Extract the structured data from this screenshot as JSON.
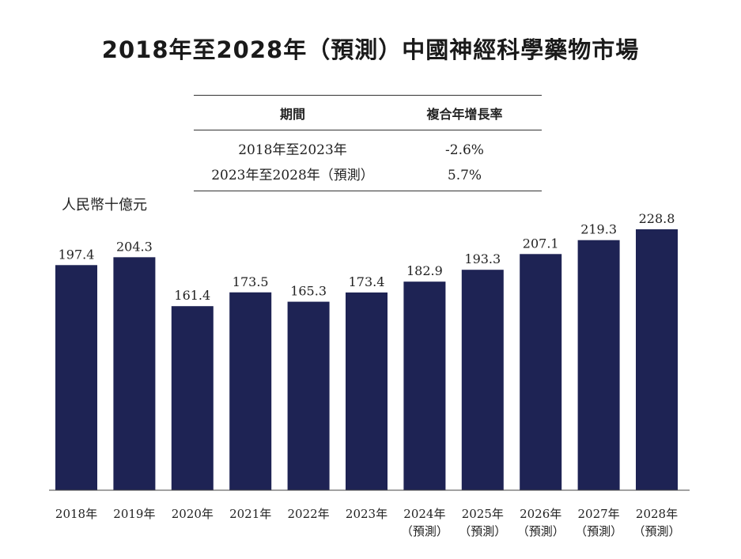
{
  "title": "2018年至2028年（預測）中國神經科學藥物市場",
  "cagr_table": {
    "headers": [
      "期間",
      "複合年增長率"
    ],
    "rows": [
      [
        "2018年至2023年",
        "-2.6%"
      ],
      [
        "2023年至2028年（預測）",
        "5.7%"
      ]
    ]
  },
  "unit_label": "人民幣十億元",
  "bar_color": "#1e2354",
  "chart_data": {
    "type": "bar",
    "title": "2018年至2028年（預測）中國神經科學藥物市場",
    "ylabel": "人民幣十億元",
    "xlabel": "",
    "ylim": [
      0,
      228.8
    ],
    "grid": false,
    "categories": [
      [
        "2018年"
      ],
      [
        "2019年"
      ],
      [
        "2020年"
      ],
      [
        "2021年"
      ],
      [
        "2022年"
      ],
      [
        "2023年"
      ],
      [
        "2024年",
        "（預測）"
      ],
      [
        "2025年",
        "（預測）"
      ],
      [
        "2026年",
        "（預測）"
      ],
      [
        "2027年",
        "（預測）"
      ],
      [
        "2028年",
        "（預測）"
      ]
    ],
    "values": [
      197.4,
      204.3,
      161.4,
      173.5,
      165.3,
      173.4,
      182.9,
      193.3,
      207.1,
      219.3,
      228.8
    ],
    "value_labels": [
      "197.4",
      "204.3",
      "161.4",
      "173.5",
      "165.3",
      "173.4",
      "182.9",
      "193.3",
      "207.1",
      "219.3",
      "228.8"
    ]
  }
}
